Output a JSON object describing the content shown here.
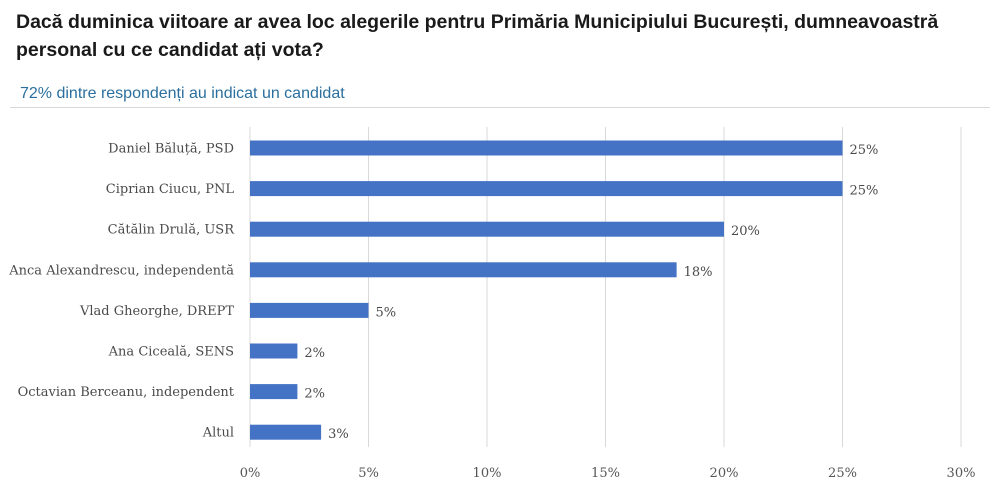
{
  "chart_data": {
    "type": "bar",
    "orientation": "horizontal",
    "title": "Dacă duminica viitoare ar avea loc alegerile pentru Primăria Municipiului București, dumneavoastră personal cu ce candidat ați vota?",
    "subtitle": "72% dintre respondenți au indicat un candidat",
    "categories": [
      "Daniel Băluță, PSD",
      "Ciprian Ciucu, PNL",
      "Cătălin Drulă, USR",
      "Anca Alexandrescu, independentă",
      "Vlad Gheorghe, DREPT",
      "Ana Ciceală, SENS",
      "Octavian Berceanu, independent",
      "Altul"
    ],
    "values": [
      25,
      25,
      20,
      18,
      5,
      2,
      2,
      3
    ],
    "value_labels": [
      "25%",
      "25%",
      "20%",
      "18%",
      "5%",
      "2%",
      "2%",
      "3%"
    ],
    "xlim": [
      0,
      30
    ],
    "xticks": [
      0,
      5,
      10,
      15,
      20,
      25,
      30
    ],
    "xtick_labels": [
      "0%",
      "5%",
      "10%",
      "15%",
      "20%",
      "25%",
      "30%"
    ],
    "grid": true,
    "bar_color": "#4472c4",
    "grid_color": "#d9d9d9"
  }
}
